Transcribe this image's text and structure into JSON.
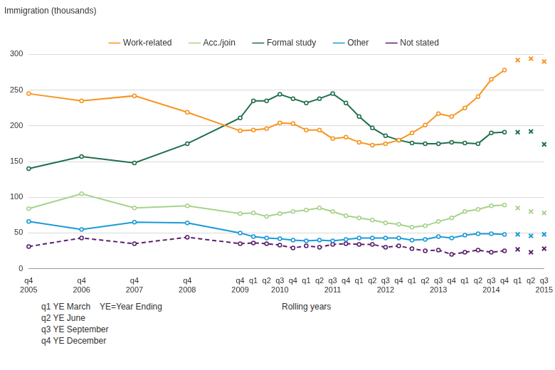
{
  "chart_data": {
    "type": "line",
    "ylabel": "Immigration (thousands)",
    "categories": [
      "q4\n2005",
      null,
      null,
      null,
      "q4\n2006",
      null,
      null,
      null,
      "q4\n2007",
      null,
      null,
      null,
      "q4\n2008",
      null,
      null,
      null,
      "q4\n2009",
      "q1",
      "q2",
      "q3\n2010",
      "q4",
      "q1",
      "q2",
      "q3\n2011",
      "q4",
      "q1",
      "q2",
      "q3\n2012",
      "q4",
      "q1",
      "q2",
      "q3\n2013",
      "q4",
      "q1",
      "q2",
      "q3\n2014",
      "q4",
      "q1",
      "q2",
      "q3\n2015"
    ],
    "series": [
      {
        "name": "Work-related",
        "color": "#f7941e",
        "marker": "circle",
        "line_style": "solid",
        "values": [
          245,
          null,
          null,
          null,
          235,
          null,
          null,
          null,
          242,
          null,
          null,
          null,
          219,
          null,
          null,
          null,
          193,
          194,
          196,
          204,
          203,
          194,
          194,
          182,
          184,
          177,
          173,
          175,
          180,
          190,
          201,
          217,
          213,
          225,
          241,
          265,
          278,
          null,
          null,
          null
        ]
      },
      {
        "name": "Acc./join",
        "color": "#a6d38a",
        "marker": "circle",
        "line_style": "solid",
        "values": [
          84,
          null,
          null,
          null,
          105,
          null,
          null,
          null,
          85,
          null,
          null,
          null,
          88,
          null,
          null,
          null,
          77,
          78,
          73,
          77,
          80,
          82,
          85,
          80,
          74,
          71,
          68,
          64,
          62,
          58,
          60,
          66,
          71,
          80,
          83,
          88,
          89,
          null,
          null,
          null
        ]
      },
      {
        "name": "Formal study",
        "color": "#1e6e4a",
        "marker": "circle",
        "line_style": "solid",
        "values": [
          140,
          null,
          null,
          null,
          157,
          null,
          null,
          null,
          148,
          null,
          null,
          null,
          175,
          null,
          null,
          null,
          211,
          235,
          235,
          244,
          238,
          232,
          238,
          245,
          232,
          213,
          197,
          186,
          180,
          176,
          175,
          175,
          177,
          176,
          175,
          190,
          191,
          null,
          null,
          null
        ]
      },
      {
        "name": "Other",
        "color": "#1a9bd7",
        "marker": "circle",
        "line_style": "solid",
        "values": [
          66,
          null,
          null,
          null,
          55,
          null,
          null,
          null,
          65,
          null,
          null,
          null,
          64,
          null,
          null,
          null,
          50,
          45,
          43,
          42,
          40,
          39,
          40,
          39,
          41,
          43,
          43,
          43,
          43,
          40,
          41,
          45,
          43,
          47,
          49,
          49,
          48,
          null,
          null,
          null
        ]
      },
      {
        "name": "Not stated",
        "color": "#5a1f6e",
        "marker": "circle",
        "line_style": "dashed",
        "values": [
          31,
          null,
          null,
          null,
          43,
          null,
          null,
          null,
          35,
          null,
          null,
          null,
          44,
          null,
          null,
          null,
          35,
          36,
          35,
          33,
          29,
          32,
          30,
          34,
          35,
          34,
          34,
          30,
          32,
          28,
          25,
          26,
          20,
          23,
          26,
          23,
          25,
          null,
          null,
          null
        ]
      },
      {
        "color": "#f7941e",
        "marker": "cross",
        "line_style": "none",
        "values": [
          null,
          null,
          null,
          null,
          null,
          null,
          null,
          null,
          null,
          null,
          null,
          null,
          null,
          null,
          null,
          null,
          null,
          null,
          null,
          null,
          null,
          null,
          null,
          null,
          null,
          null,
          null,
          null,
          null,
          null,
          null,
          null,
          null,
          null,
          null,
          null,
          null,
          292,
          294,
          290
        ]
      },
      {
        "color": "#a6d38a",
        "marker": "cross",
        "line_style": "none",
        "values": [
          null,
          null,
          null,
          null,
          null,
          null,
          null,
          null,
          null,
          null,
          null,
          null,
          null,
          null,
          null,
          null,
          null,
          null,
          null,
          null,
          null,
          null,
          null,
          null,
          null,
          null,
          null,
          null,
          null,
          null,
          null,
          null,
          null,
          null,
          null,
          null,
          null,
          85,
          80,
          78
        ]
      },
      {
        "color": "#1e6e4a",
        "marker": "cross",
        "line_style": "none",
        "values": [
          null,
          null,
          null,
          null,
          null,
          null,
          null,
          null,
          null,
          null,
          null,
          null,
          null,
          null,
          null,
          null,
          null,
          null,
          null,
          null,
          null,
          null,
          null,
          null,
          null,
          null,
          null,
          null,
          null,
          null,
          null,
          null,
          null,
          null,
          null,
          null,
          null,
          191,
          192,
          174
        ]
      },
      {
        "color": "#1a9bd7",
        "marker": "cross",
        "line_style": "none",
        "values": [
          null,
          null,
          null,
          null,
          null,
          null,
          null,
          null,
          null,
          null,
          null,
          null,
          null,
          null,
          null,
          null,
          null,
          null,
          null,
          null,
          null,
          null,
          null,
          null,
          null,
          null,
          null,
          null,
          null,
          null,
          null,
          null,
          null,
          null,
          null,
          null,
          null,
          48,
          46,
          48
        ]
      },
      {
        "color": "#5a1f6e",
        "marker": "cross",
        "line_style": "none",
        "values": [
          null,
          null,
          null,
          null,
          null,
          null,
          null,
          null,
          null,
          null,
          null,
          null,
          null,
          null,
          null,
          null,
          null,
          null,
          null,
          null,
          null,
          null,
          null,
          null,
          null,
          null,
          null,
          null,
          null,
          null,
          null,
          null,
          null,
          null,
          null,
          null,
          null,
          27,
          23,
          28
        ]
      }
    ],
    "ylim": [
      0,
      300
    ],
    "yticks": [
      0,
      50,
      100,
      150,
      200,
      250,
      300
    ],
    "grid": true,
    "legend": "top",
    "annotations": [
      "q1 YE March",
      "YE=Year Ending",
      "Rolling years",
      "q2 YE June",
      "q3 YE September",
      "q4 YE December"
    ]
  }
}
